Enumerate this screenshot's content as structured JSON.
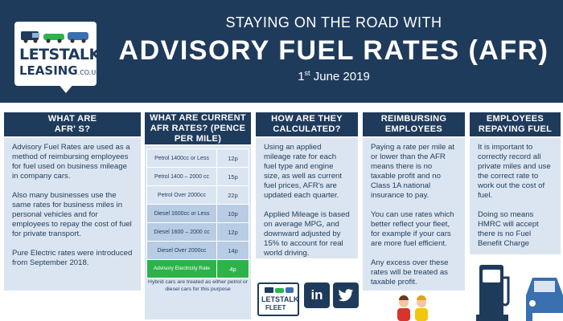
{
  "logo": {
    "line1": "LETSTALK",
    "line2": "LEASING",
    "tld": ".CO.UK"
  },
  "header": {
    "subtitle": "STAYING ON THE ROAD WITH",
    "title": "ADVISORY FUEL RATES (AFR)",
    "date_day": "1",
    "date_suffix": "st",
    "date_rest": " June 2019"
  },
  "columns": {
    "what_are": {
      "heading": "WHAT ARE AFR' S?",
      "paragraphs": [
        "Advisory Fuel Rates are used as a method of reimbursing employees for fuel used on business mileage in company cars.",
        "Also many businesses use the same rates for business miles in personal vehicles and for employees to repay the cost of fuel for private transport.",
        "Pure Electric rates were introduced from September 2018."
      ]
    },
    "current_rates": {
      "heading": "WHAT ARE CURRENT AFR RATES? (PENCE PER MILE)",
      "rows": [
        {
          "name": "Petrol 1400cc or Less",
          "value": "12p",
          "fuel": "petrol"
        },
        {
          "name": "Petrol 1400 – 2000 cc",
          "value": "15p",
          "fuel": "petrol"
        },
        {
          "name": "Petrol Over 2000cc",
          "value": "22p",
          "fuel": "petrol"
        },
        {
          "name": "Diesel 1600cc or Less",
          "value": "10p",
          "fuel": "diesel"
        },
        {
          "name": "Diesel 1600 – 2000 cc",
          "value": "12p",
          "fuel": "diesel"
        },
        {
          "name": "Diesel Over 2000cc",
          "value": "14p",
          "fuel": "diesel"
        },
        {
          "name": "Advisory Electricity Rate",
          "value": "4p",
          "fuel": "electric"
        }
      ],
      "note": "Hybrid cars are treated as either petrol or diesel cars for this purpose"
    },
    "calculated": {
      "heading": "HOW ARE THEY CALCULATED?",
      "paragraphs": [
        "Using an applied mileage rate for each fuel type and engine size, as well as current fuel prices, AFR's are updated each quarter.",
        "Applied Mileage is based on average MPG, and downward adjusted by 15% to account for real world driving."
      ]
    },
    "reimbursing": {
      "heading": "REIMBURSING EMPLOYEES",
      "paragraphs": [
        "Paying a rate per mile at or lower than the AFR means there is no taxable profit and no Class 1A national insurance to pay.",
        "You can use rates which better reflect your fleet, for example if your cars are more fuel efficient.",
        "Any excess over these rates will be treated as taxable profit."
      ]
    },
    "repaying": {
      "heading": "EMPLOYEES REPAYING FUEL",
      "paragraphs": [
        "It is important to correctly record all private miles and use the correct rate to work out the cost of fuel.",
        "Doing so means HMRC will accept there is no Fuel Benefit Charge"
      ]
    }
  },
  "footer": {
    "fleet_line1": "LETSTALK",
    "fleet_line2": "FLEET",
    "linkedin": "in",
    "twitter": "🐦"
  },
  "colors": {
    "navy": "#1f3b5c",
    "light_blue": "#dbe5f1",
    "mid_blue": "#b8cce4",
    "green": "#2db34a"
  }
}
